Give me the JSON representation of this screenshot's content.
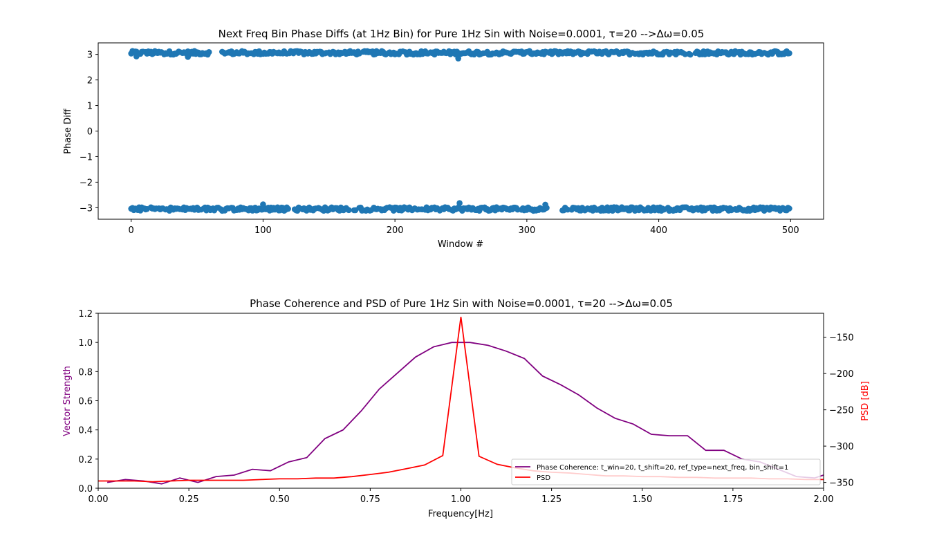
{
  "chart_data": [
    {
      "type": "scatter",
      "title": "Next Freq Bin Phase Diffs (at 1Hz Bin) for Pure 1Hz Sin with Noise=0.0001, τ=20 -->Δω=0.05",
      "xlabel": "Window #",
      "ylabel": "Phase Diff",
      "xlim": [
        -25,
        525
      ],
      "ylim": [
        -3.45,
        3.45
      ],
      "xticks": [
        0,
        100,
        200,
        300,
        400,
        500
      ],
      "yticks": [
        3,
        2,
        1,
        0,
        -1,
        -2,
        -3
      ],
      "ytick_labels": [
        "3",
        "2",
        "1",
        "0",
        "−1",
        "−2",
        "−3"
      ],
      "grid": false,
      "marker_color": "#1f77b4",
      "series": [
        {
          "x_start": 0,
          "x_end": 499,
          "x_step": 1,
          "y_center": 3.06,
          "y_spread": 0.07,
          "note_skip": [
            [
              60,
              68
            ]
          ]
        },
        {
          "x_start": 0,
          "x_end": 499,
          "x_step": 1,
          "y_center": -3.05,
          "y_spread": 0.07,
          "note_skip": [
            [
              316,
              326
            ]
          ]
        }
      ],
      "outliers": [
        {
          "x": 248,
          "y": 2.84
        },
        {
          "x": 249,
          "y": -2.82
        },
        {
          "x": 100,
          "y": -2.87
        },
        {
          "x": 314,
          "y": -2.88
        },
        {
          "x": 4,
          "y": 2.92
        },
        {
          "x": 43,
          "y": 2.9
        }
      ]
    },
    {
      "type": "line",
      "title": "Phase Coherence and PSD of Pure 1Hz Sin with Noise=0.0001, τ=20 -->Δω=0.05",
      "xlabel": "Frequency[Hz]",
      "ylabel": "Vector Strength",
      "ylabel_right": "PSD [dB]",
      "xlim": [
        0,
        2.0
      ],
      "ylim": [
        0,
        1.2
      ],
      "ylim_right": [
        -358,
        -117
      ],
      "xticks": [
        0.0,
        0.25,
        0.5,
        0.75,
        1.0,
        1.25,
        1.5,
        1.75,
        2.0
      ],
      "xtick_labels": [
        "0.00",
        "0.25",
        "0.50",
        "0.75",
        "1.00",
        "1.25",
        "1.50",
        "1.75",
        "2.00"
      ],
      "yticks": [
        0.0,
        0.2,
        0.4,
        0.6,
        0.8,
        1.0,
        1.2
      ],
      "ytick_labels": [
        "0.0",
        "0.2",
        "0.4",
        "0.6",
        "0.8",
        "1.0",
        "1.2"
      ],
      "yticks_right": [
        -150,
        -200,
        -250,
        -300,
        -350
      ],
      "ytick_labels_right": [
        "−150",
        "−200",
        "−250",
        "−300",
        "−350"
      ],
      "legend_position": "lower right",
      "series": [
        {
          "name": "Phase Coherence: t_win=20, t_shift=20, ref_type=next_freq, bin_shift=1",
          "color": "#800080",
          "axis": "left",
          "x": [
            0.025,
            0.075,
            0.125,
            0.175,
            0.225,
            0.275,
            0.325,
            0.375,
            0.425,
            0.475,
            0.525,
            0.575,
            0.625,
            0.675,
            0.725,
            0.775,
            0.825,
            0.875,
            0.925,
            0.975,
            1.025,
            1.075,
            1.125,
            1.175,
            1.225,
            1.275,
            1.325,
            1.375,
            1.425,
            1.475,
            1.525,
            1.575,
            1.625,
            1.675,
            1.725,
            1.775,
            1.825,
            1.875,
            1.925,
            1.975,
            2.0
          ],
          "y": [
            0.04,
            0.06,
            0.05,
            0.03,
            0.07,
            0.04,
            0.08,
            0.09,
            0.13,
            0.12,
            0.18,
            0.21,
            0.34,
            0.4,
            0.53,
            0.68,
            0.79,
            0.9,
            0.97,
            1.0,
            1.0,
            0.98,
            0.94,
            0.89,
            0.77,
            0.71,
            0.64,
            0.55,
            0.48,
            0.44,
            0.37,
            0.36,
            0.36,
            0.26,
            0.26,
            0.2,
            0.18,
            0.13,
            0.08,
            0.07,
            0.09
          ]
        },
        {
          "name": "PSD",
          "color": "#ff0000",
          "axis": "right",
          "x": [
            0.0,
            0.05,
            0.1,
            0.15,
            0.2,
            0.25,
            0.3,
            0.35,
            0.4,
            0.45,
            0.5,
            0.55,
            0.6,
            0.65,
            0.7,
            0.75,
            0.8,
            0.85,
            0.9,
            0.95,
            1.0,
            1.05,
            1.1,
            1.15,
            1.2,
            1.25,
            1.3,
            1.35,
            1.4,
            1.45,
            1.5,
            1.55,
            1.6,
            1.65,
            1.7,
            1.75,
            1.8,
            1.85,
            1.9,
            1.95,
            2.0
          ],
          "y": [
            -348,
            -348,
            -348,
            -349,
            -348,
            -347,
            -347,
            -347,
            -347,
            -346,
            -345,
            -345,
            -344,
            -344,
            -342,
            -339,
            -336,
            -331,
            -326,
            -313,
            -122,
            -314,
            -325,
            -330,
            -334,
            -336,
            -337,
            -339,
            -341,
            -341,
            -342,
            -342,
            -343,
            -343,
            -344,
            -344,
            -344,
            -345,
            -345,
            -346,
            -346
          ]
        }
      ]
    }
  ]
}
